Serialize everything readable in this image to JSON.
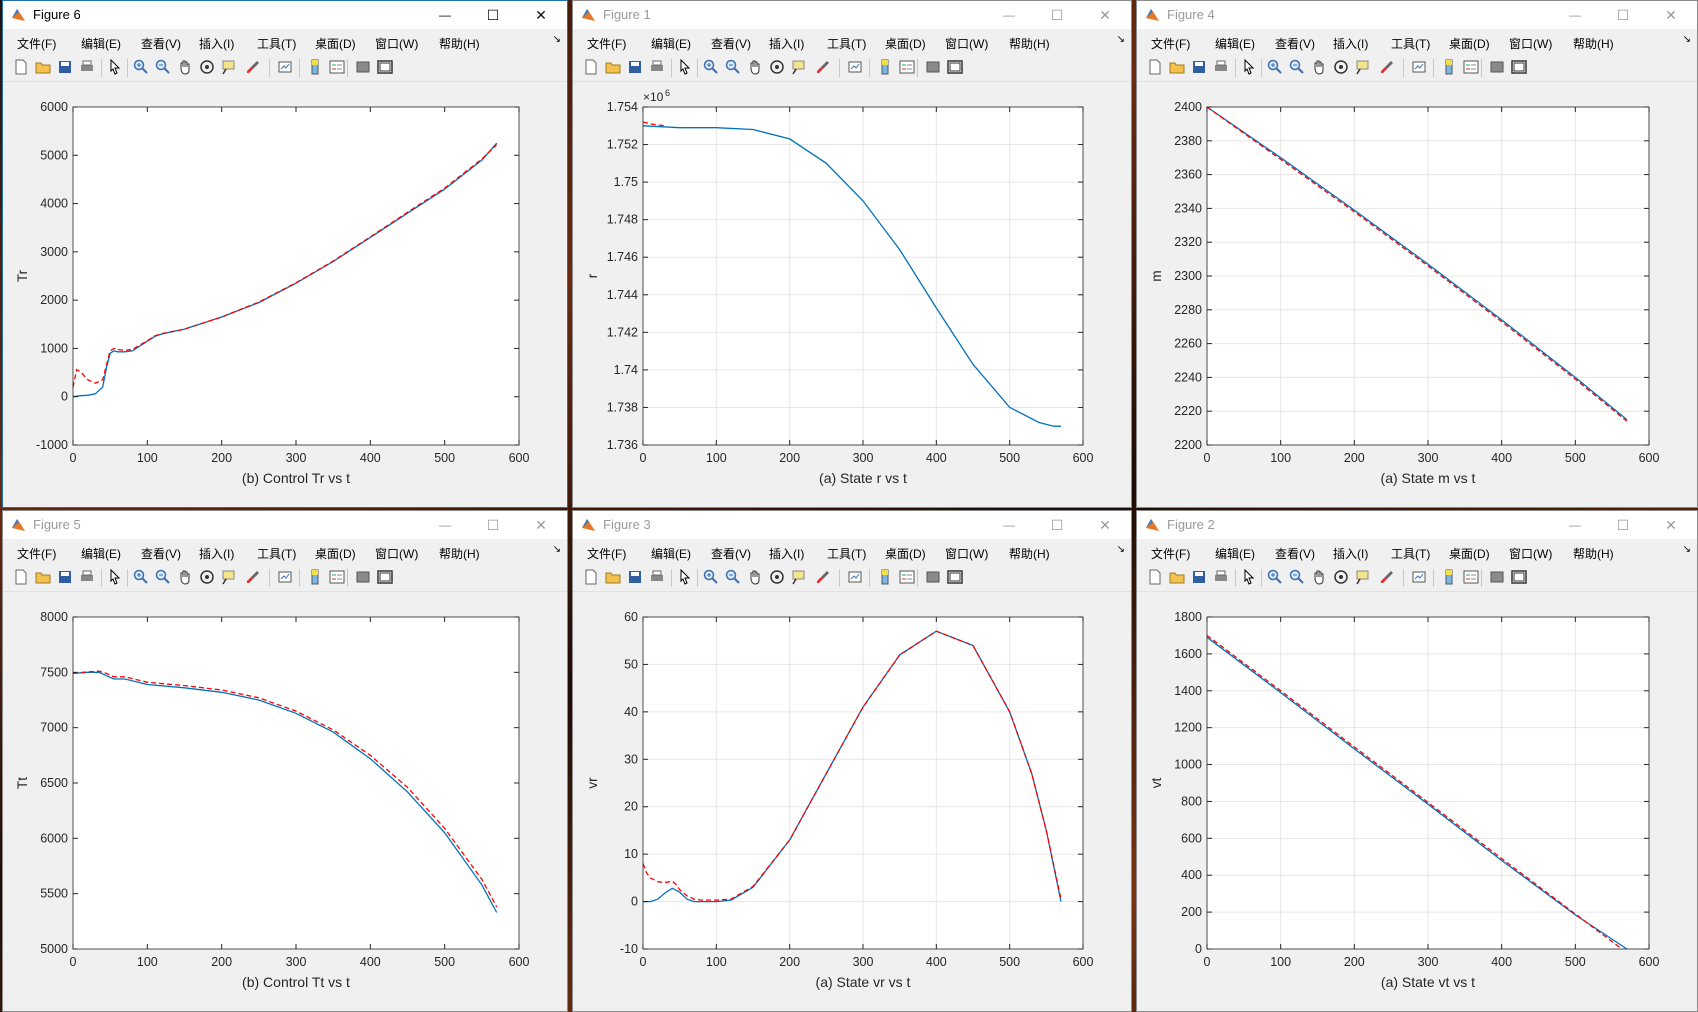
{
  "menu": [
    "文件(F)",
    "编辑(E)",
    "查看(V)",
    "插入(I)",
    "工具(T)",
    "桌面(D)",
    "窗口(W)",
    "帮助(H)"
  ],
  "toolbar_icons": [
    "new-figure-icon",
    "open-file-icon",
    "save-icon",
    "print-icon",
    "pointer-icon",
    "zoom-in-icon",
    "zoom-out-icon",
    "pan-icon",
    "rotate-3d-icon",
    "data-cursor-icon",
    "brush-icon",
    "link-plot-icon",
    "colorbar-icon",
    "legend-icon",
    "hide-plot-tools-icon",
    "show-plot-tools-icon"
  ],
  "window_controls": {
    "minimize": "—",
    "maximize": "☐",
    "close": "✕"
  },
  "colors": {
    "solid": "#0072bd",
    "dashed": "#ff0000"
  },
  "windows": [
    {
      "key": "fig6",
      "title": "Figure 6",
      "active": true,
      "chart_data": {
        "type": "line",
        "title": "(b) Control Tr vs t",
        "ylabel": "Tr",
        "xlabel": "",
        "xlim": [
          0,
          600
        ],
        "ylim": [
          -1000,
          6000
        ],
        "xticks": [
          0,
          100,
          200,
          300,
          400,
          500,
          600
        ],
        "yticks": [
          -1000,
          0,
          1000,
          2000,
          3000,
          4000,
          5000,
          6000
        ],
        "grid": false,
        "series": [
          {
            "style": "solid",
            "x": [
              0,
              10,
              20,
              30,
              40,
              45,
              50,
              55,
              60,
              70,
              80,
              90,
              100,
              110,
              120,
              150,
              200,
              250,
              300,
              350,
              400,
              450,
              500,
              550,
              570
            ],
            "y": [
              0,
              20,
              30,
              60,
              200,
              600,
              900,
              950,
              930,
              930,
              950,
              1050,
              1150,
              1250,
              1300,
              1400,
              1650,
              1950,
              2350,
              2800,
              3300,
              3800,
              4300,
              4900,
              5250
            ]
          },
          {
            "style": "dashed",
            "x": [
              0,
              5,
              10,
              20,
              30,
              40,
              45,
              50,
              55,
              60,
              70,
              80,
              90,
              100,
              110,
              120,
              150,
              200,
              250,
              300,
              350,
              400,
              450,
              500,
              550,
              570
            ],
            "y": [
              200,
              560,
              520,
              350,
              280,
              350,
              650,
              950,
              1000,
              980,
              960,
              980,
              1070,
              1160,
              1260,
              1310,
              1400,
              1650,
              1960,
              2360,
              2810,
              3310,
              3820,
              4320,
              4920,
              5220
            ]
          }
        ]
      }
    },
    {
      "key": "fig1",
      "title": "Figure 1",
      "active": false,
      "chart_data": {
        "type": "line",
        "title": "(a) State r vs t",
        "ylabel": "r",
        "xlabel": "",
        "exponent_label": "×10",
        "exponent_power": "6",
        "xlim": [
          0,
          600
        ],
        "ylim": [
          1.736,
          1.754
        ],
        "xticks": [
          0,
          100,
          200,
          300,
          400,
          500,
          600
        ],
        "yticks": [
          1.736,
          1.738,
          1.74,
          1.742,
          1.744,
          1.746,
          1.748,
          1.75,
          1.752,
          1.754
        ],
        "grid": true,
        "series": [
          {
            "style": "solid",
            "x": [
              0,
              50,
              100,
              150,
              200,
              250,
              300,
              350,
              400,
              450,
              500,
              540,
              560,
              570
            ],
            "y": [
              1.753,
              1.7529,
              1.7529,
              1.7528,
              1.7523,
              1.751,
              1.749,
              1.7464,
              1.7433,
              1.7403,
              1.738,
              1.7372,
              1.737,
              1.737
            ]
          },
          {
            "style": "dashed",
            "x": [
              0,
              10,
              30
            ],
            "y": [
              1.7532,
              1.7531,
              1.753
            ]
          }
        ]
      }
    },
    {
      "key": "fig4",
      "title": "Figure 4",
      "active": false,
      "chart_data": {
        "type": "line",
        "title": "(a) State m vs t",
        "ylabel": "m",
        "xlabel": "",
        "xlim": [
          0,
          600
        ],
        "ylim": [
          2200,
          2400
        ],
        "xticks": [
          0,
          100,
          200,
          300,
          400,
          500,
          600
        ],
        "yticks": [
          2200,
          2220,
          2240,
          2260,
          2280,
          2300,
          2320,
          2340,
          2360,
          2380,
          2400
        ],
        "grid": true,
        "series": [
          {
            "style": "solid",
            "x": [
              0,
              100,
              200,
              300,
              400,
              500,
              570
            ],
            "y": [
              2400,
              2370,
              2339,
              2307,
              2274,
              2240,
              2215
            ]
          },
          {
            "style": "dashed",
            "x": [
              0,
              100,
              200,
              300,
              400,
              500,
              570
            ],
            "y": [
              2400,
              2369,
              2338,
              2306,
              2273,
              2239,
              2214
            ]
          }
        ]
      }
    },
    {
      "key": "fig5",
      "title": "Figure 5",
      "active": false,
      "chart_data": {
        "type": "line",
        "title": "(b) Control Tt vs t",
        "ylabel": "Tt",
        "xlabel": "",
        "xlim": [
          0,
          600
        ],
        "ylim": [
          5000,
          8000
        ],
        "xticks": [
          0,
          100,
          200,
          300,
          400,
          500,
          600
        ],
        "yticks": [
          5000,
          5500,
          6000,
          6500,
          7000,
          7500,
          8000
        ],
        "grid": false,
        "series": [
          {
            "style": "solid",
            "x": [
              0,
              20,
              35,
              45,
              55,
              70,
              100,
              150,
              200,
              250,
              300,
              350,
              400,
              450,
              500,
              550,
              570
            ],
            "y": [
              7490,
              7500,
              7500,
              7470,
              7440,
              7440,
              7390,
              7360,
              7320,
              7250,
              7130,
              6960,
              6720,
              6420,
              6050,
              5580,
              5330
            ]
          },
          {
            "style": "dashed",
            "x": [
              0,
              20,
              35,
              45,
              55,
              70,
              100,
              150,
              200,
              250,
              300,
              350,
              400,
              450,
              500,
              550,
              570
            ],
            "y": [
              7490,
              7505,
              7510,
              7490,
              7460,
              7460,
              7410,
              7380,
              7340,
              7270,
              7150,
              6980,
              6750,
              6460,
              6090,
              5630,
              5380
            ]
          }
        ]
      }
    },
    {
      "key": "fig3",
      "title": "Figure 3",
      "active": false,
      "chart_data": {
        "type": "line",
        "title": "(a) State vr vs t",
        "ylabel": "vr",
        "xlabel": "",
        "xlim": [
          0,
          600
        ],
        "ylim": [
          -10,
          60
        ],
        "xticks": [
          0,
          100,
          200,
          300,
          400,
          500,
          600
        ],
        "yticks": [
          -10,
          0,
          10,
          20,
          30,
          40,
          50,
          60
        ],
        "grid": true,
        "series": [
          {
            "style": "solid",
            "x": [
              0,
              10,
              20,
              30,
              40,
              50,
              60,
              70,
              80,
              90,
              100,
              120,
              150,
              200,
              250,
              300,
              350,
              400,
              450,
              500,
              530,
              550,
              570
            ],
            "y": [
              0,
              0,
              0.5,
              1.8,
              2.8,
              2.0,
              0.5,
              0,
              0,
              0,
              0,
              0.3,
              3,
              13,
              27,
              41,
              52,
              57,
              54,
              40,
              27,
              15,
              0
            ]
          },
          {
            "style": "dashed",
            "x": [
              0,
              5,
              10,
              20,
              30,
              40,
              45,
              50,
              60,
              70,
              80,
              90,
              100,
              120,
              150,
              200,
              250,
              300,
              350,
              400,
              450,
              500,
              530,
              550,
              570
            ],
            "y": [
              8,
              6,
              5,
              4.2,
              4.0,
              4.3,
              3.6,
              2.5,
              1.2,
              0.5,
              0.3,
              0.3,
              0.3,
              0.5,
              3.2,
              13,
              27,
              41,
              52,
              57,
              54,
              40,
              27,
              15,
              0.5
            ]
          }
        ]
      }
    },
    {
      "key": "fig2",
      "title": "Figure 2",
      "active": false,
      "chart_data": {
        "type": "line",
        "title": "(a) State vt vs t",
        "ylabel": "vt",
        "xlabel": "",
        "xlim": [
          0,
          600
        ],
        "ylim": [
          0,
          1800
        ],
        "xticks": [
          0,
          100,
          200,
          300,
          400,
          500,
          600
        ],
        "yticks": [
          0,
          200,
          400,
          600,
          800,
          1000,
          1200,
          1400,
          1600,
          1800
        ],
        "grid": true,
        "series": [
          {
            "style": "solid",
            "x": [
              0,
              100,
              200,
              300,
              400,
              500,
              570
            ],
            "y": [
              1690,
              1390,
              1085,
              785,
              480,
              185,
              0
            ]
          },
          {
            "style": "dashed",
            "x": [
              0,
              100,
              200,
              300,
              400,
              500,
              560
            ],
            "y": [
              1700,
              1400,
              1095,
              795,
              490,
              190,
              10
            ]
          }
        ]
      }
    }
  ]
}
